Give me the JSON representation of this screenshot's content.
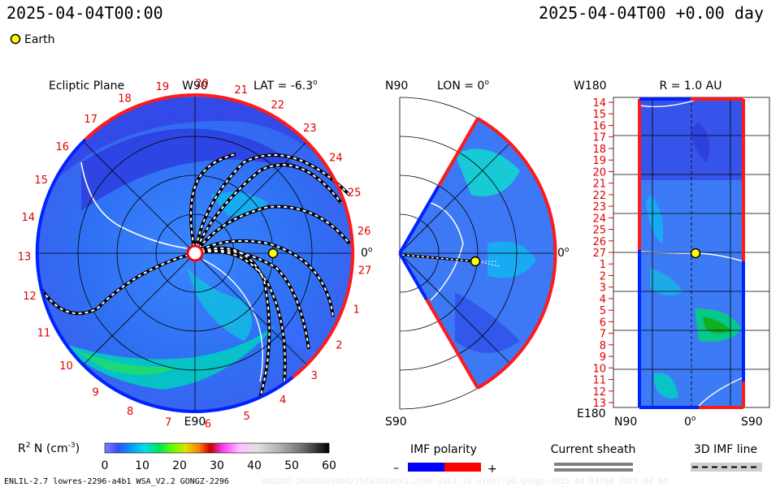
{
  "header": {
    "left_time": "2025-04-04T00:00",
    "right_time": "2025-04-04T00 +0.00 day"
  },
  "legend": {
    "earth_label": "Earth",
    "earth_color": "#ffff00"
  },
  "panels": {
    "ecliptic": {
      "title": "Ecliptic Plane",
      "w_label": "W90",
      "e_label": "E90",
      "lat_label": "LAT = -6.3",
      "zero_label": "0",
      "cr_labels": [
        "19",
        "20",
        "21",
        "22",
        "23",
        "24",
        "25",
        "26",
        "27",
        "1",
        "2",
        "3",
        "4",
        "5",
        "6",
        "7",
        "8",
        "9",
        "10",
        "11",
        "12",
        "13",
        "14",
        "15",
        "16",
        "17",
        "18"
      ]
    },
    "meridional": {
      "n_label": "N90",
      "s_label": "S90",
      "lon_label": "LON = 0",
      "zero_label": "0"
    },
    "r_surface": {
      "w_label": "W180",
      "e_label": "E180",
      "r_label": "R = 1.0 AU",
      "bottom_left": "N90",
      "bottom_mid": "0",
      "bottom_right": "S90",
      "row_labels": [
        "14",
        "15",
        "16",
        "17",
        "18",
        "19",
        "20",
        "21",
        "22",
        "23",
        "24",
        "25",
        "26",
        "27",
        "1",
        "2",
        "3",
        "4",
        "5",
        "6",
        "7",
        "8",
        "9",
        "10",
        "11",
        "12",
        "13"
      ]
    }
  },
  "colorbar": {
    "label": "R  N (cm  )",
    "ticks": [
      "0",
      "10",
      "20",
      "30",
      "40",
      "50",
      "60"
    ],
    "min": 0,
    "max": 60
  },
  "imf": {
    "title": "IMF polarity",
    "minus": "–",
    "plus": "+",
    "neg_color": "#0000ff",
    "pos_color": "#ff0000"
  },
  "sheath": {
    "title": "Current sheath"
  },
  "imfline": {
    "title": "3D IMF line"
  },
  "footer": {
    "left": "ENLIL-2.7 lowres-2296-a4b1 WSA_V2.2 GONGZ-2296",
    "right": "UNIQUE-20250403000/256x30x90x1.2296-a4b1.16-nrepl-gd.gongz-2025-04-04T00  2025-04-04"
  },
  "chart_data": {
    "type": "heatmap",
    "title": "",
    "variable": "R^2 N (cm^-3)",
    "colorbar_range": [
      0,
      60
    ],
    "colorbar_ticks": [
      0,
      10,
      20,
      30,
      40,
      50,
      60
    ],
    "time": "2025-04-04T00:00",
    "offset_days": 0.0,
    "earth": {
      "lat_deg": -6.3,
      "lon_deg": 0,
      "r_au": 1.0
    },
    "panels": [
      "Ecliptic Plane (LAT = -6.3)",
      "Meridional (LON = 0)",
      "R = 1.0 AU (W180 to E180, N90 to S90)"
    ],
    "imf_polarity": {
      "negative": "blue",
      "positive": "red"
    },
    "carrington_labels": [
      "19",
      "20",
      "21",
      "22",
      "23",
      "24",
      "25",
      "26",
      "27",
      "1",
      "2",
      "3",
      "4",
      "5",
      "6",
      "7",
      "8",
      "9",
      "10",
      "11",
      "12",
      "13",
      "14",
      "15",
      "16",
      "17",
      "18"
    ]
  }
}
